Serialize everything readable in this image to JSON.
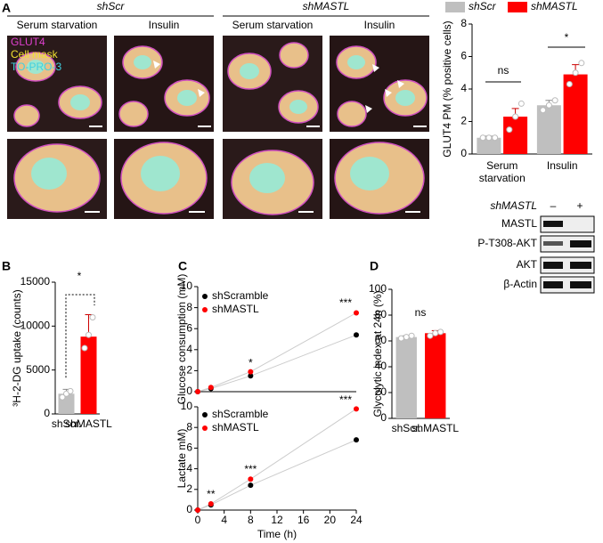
{
  "panel_labels": [
    "A",
    "B",
    "C",
    "D"
  ],
  "panel_a": {
    "groups": [
      "shScr",
      "shMASTL"
    ],
    "conditions": [
      "Serum starvation",
      "Insulin",
      "Serum starvation",
      "Insulin"
    ],
    "stains": [
      "GLUT4",
      "Cell mask",
      "TO-PRO-3"
    ]
  },
  "blot": {
    "header": "shMASTL",
    "lanes": [
      "–",
      "+"
    ],
    "rows": [
      "MASTL",
      "P-T308-AKT",
      "AKT",
      "β-Actin"
    ]
  },
  "chart_data": [
    {
      "type": "bar",
      "ylabel": "GLUT4 PM (% positive cells)",
      "categories": [
        "Serum starvation",
        "Insulin"
      ],
      "series": [
        {
          "name": "shScr",
          "color": "#bfbfbf",
          "values": [
            1.0,
            3.0
          ],
          "errors": [
            0.1,
            0.3
          ],
          "points": [
            [
              1.0,
              1.0,
              1.0
            ],
            [
              2.7,
              3.0,
              3.3
            ]
          ]
        },
        {
          "name": "shMASTL",
          "color": "#ff0000",
          "values": [
            2.3,
            4.9
          ],
          "errors": [
            0.5,
            0.6
          ],
          "points": [
            [
              1.5,
              2.3,
              3.1
            ],
            [
              4.3,
              5.0,
              5.6
            ]
          ]
        }
      ],
      "ylim": [
        0,
        8
      ],
      "yticks": [
        0,
        2,
        4,
        6,
        8
      ],
      "legend": "top",
      "annotations": [
        "ns",
        "*"
      ]
    },
    {
      "type": "bar",
      "ylabel": "³H-2-DG uptake (counts)",
      "categories": [
        "shScr.",
        "shMASTL"
      ],
      "colors": [
        "#bfbfbf",
        "#ff0000"
      ],
      "values": [
        2300,
        8800
      ],
      "errors": [
        500,
        2500
      ],
      "points": [
        [
          1900,
          2300,
          2600
        ],
        [
          7500,
          9000,
          11000
        ]
      ],
      "ylim": [
        0,
        15000
      ],
      "yticks": [
        0,
        5000,
        10000,
        15000
      ],
      "annotations": [
        "*"
      ]
    },
    {
      "type": "line",
      "ylabel": "Glucose consumption (mM)",
      "x": [
        0,
        2,
        8,
        24
      ],
      "series": [
        {
          "name": "shScramble",
          "color": "#000000",
          "values": [
            0,
            0.3,
            1.5,
            5.4
          ]
        },
        {
          "name": "shMASTL",
          "color": "#ff0000",
          "values": [
            0,
            0.4,
            1.9,
            7.5
          ]
        }
      ],
      "xlim": [
        0,
        24
      ],
      "ylim": [
        0,
        10
      ],
      "yticks": [
        0,
        2,
        4,
        6,
        8,
        10
      ],
      "legend": "upper left",
      "annotations": [
        "*",
        "***"
      ]
    },
    {
      "type": "line",
      "ylabel": "Lactate mM)",
      "xlabel": "Time (h)",
      "x": [
        0,
        2,
        8,
        24
      ],
      "series": [
        {
          "name": "shScramble",
          "color": "#000000",
          "values": [
            0,
            0.5,
            2.4,
            6.8
          ]
        },
        {
          "name": "shMASTL",
          "color": "#ff0000",
          "values": [
            0,
            0.6,
            3.0,
            9.8
          ]
        }
      ],
      "xlim": [
        0,
        24
      ],
      "xticks": [
        0,
        4,
        8,
        12,
        16,
        20,
        24
      ],
      "ylim": [
        0,
        10
      ],
      "yticks": [
        0,
        2,
        4,
        6,
        8,
        10
      ],
      "legend": "upper left",
      "annotations": [
        "**",
        "***",
        "***"
      ]
    },
    {
      "type": "bar",
      "ylabel": "Glycolytic index at 24h (%)",
      "categories": [
        "shScr.",
        "shMASTL"
      ],
      "colors": [
        "#bfbfbf",
        "#ff0000"
      ],
      "values": [
        63,
        66
      ],
      "errors": [
        1,
        2
      ],
      "points": [
        [
          62,
          63,
          64
        ],
        [
          64,
          66,
          67
        ]
      ],
      "ylim": [
        0,
        100
      ],
      "yticks": [
        0,
        20,
        40,
        60,
        80,
        100
      ],
      "annotations": [
        "ns"
      ]
    }
  ]
}
